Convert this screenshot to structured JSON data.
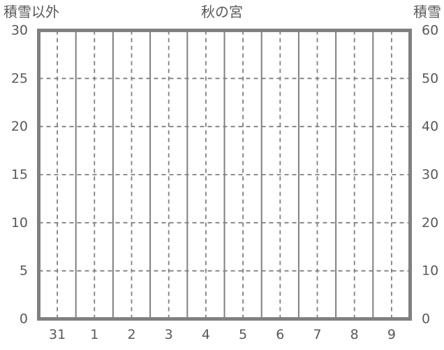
{
  "chart_data": {
    "type": "line",
    "title": "秋の宮",
    "left_axis": {
      "label": "積雪以外",
      "range": [
        0,
        30
      ],
      "ticks": [
        30,
        25,
        20,
        15,
        10,
        5,
        0
      ]
    },
    "right_axis": {
      "label": "積雪",
      "range": [
        0,
        60
      ],
      "ticks": [
        60,
        50,
        40,
        30,
        20,
        10,
        0
      ]
    },
    "x_axis": {
      "categories": [
        "31",
        "1",
        "2",
        "3",
        "4",
        "5",
        "6",
        "7",
        "8",
        "9"
      ]
    },
    "series": [],
    "legend": null,
    "grid": {
      "horizontal": "dashed at each left-axis tick",
      "vertical_major": "solid at category boundaries",
      "vertical_minor": "dashed at category centers"
    }
  },
  "colors": {
    "background": "#ffffff",
    "border": "#808080",
    "grid": "#808080",
    "text": "#595959"
  }
}
